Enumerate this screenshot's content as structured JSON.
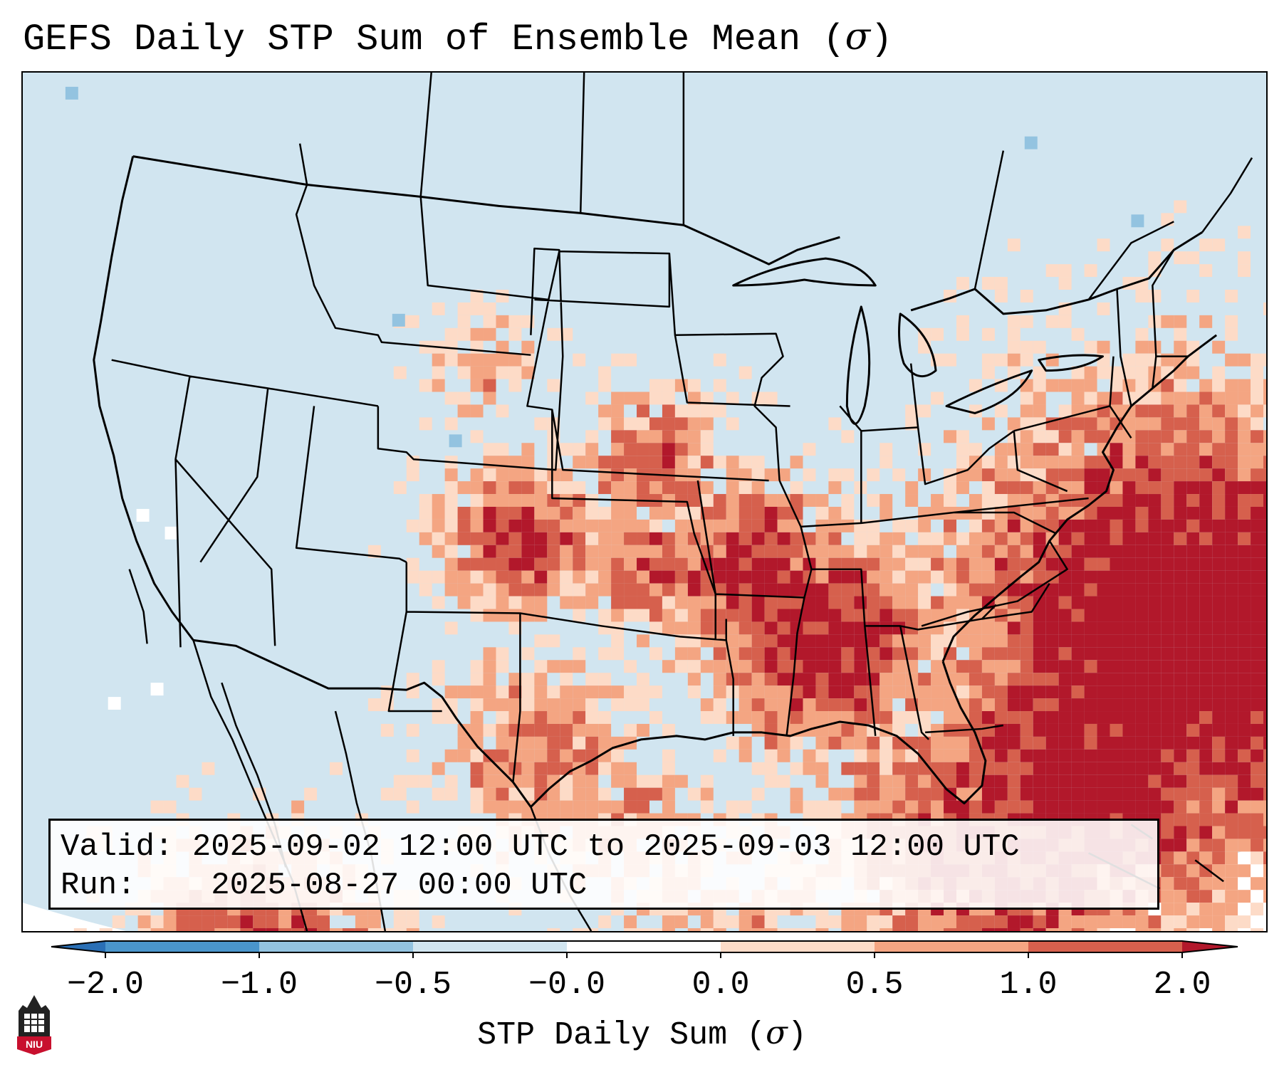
{
  "title": {
    "text": "GEFS Daily STP Sum of Ensemble Mean (",
    "sigma": "σ",
    "close": ")"
  },
  "info": {
    "valid_label": "Valid:",
    "valid_value": "2025-09-02 12:00 UTC to 2025-09-03 12:00 UTC",
    "run_label": "Run:",
    "run_value": "2025-08-27 00:00 UTC"
  },
  "colorbar": {
    "label_prefix": "STP Daily Sum (",
    "label_sigma": "σ",
    "label_suffix": ")",
    "ticks": [
      "−2.0",
      "−1.0",
      "−0.5",
      "−0.0",
      "0.0",
      "0.5",
      "1.0",
      "2.0"
    ],
    "colors": [
      "#2a6fb5",
      "#4a95cb",
      "#93c3e0",
      "#d1e5f0",
      "#ffffff",
      "#fddbc7",
      "#f4a582",
      "#d6604d",
      "#b2182b"
    ]
  },
  "logo": {
    "text": "NIU"
  },
  "map": {
    "background_color": "#d1e5f0",
    "outside_color": "#ffffff",
    "line_color": "#000000"
  }
}
